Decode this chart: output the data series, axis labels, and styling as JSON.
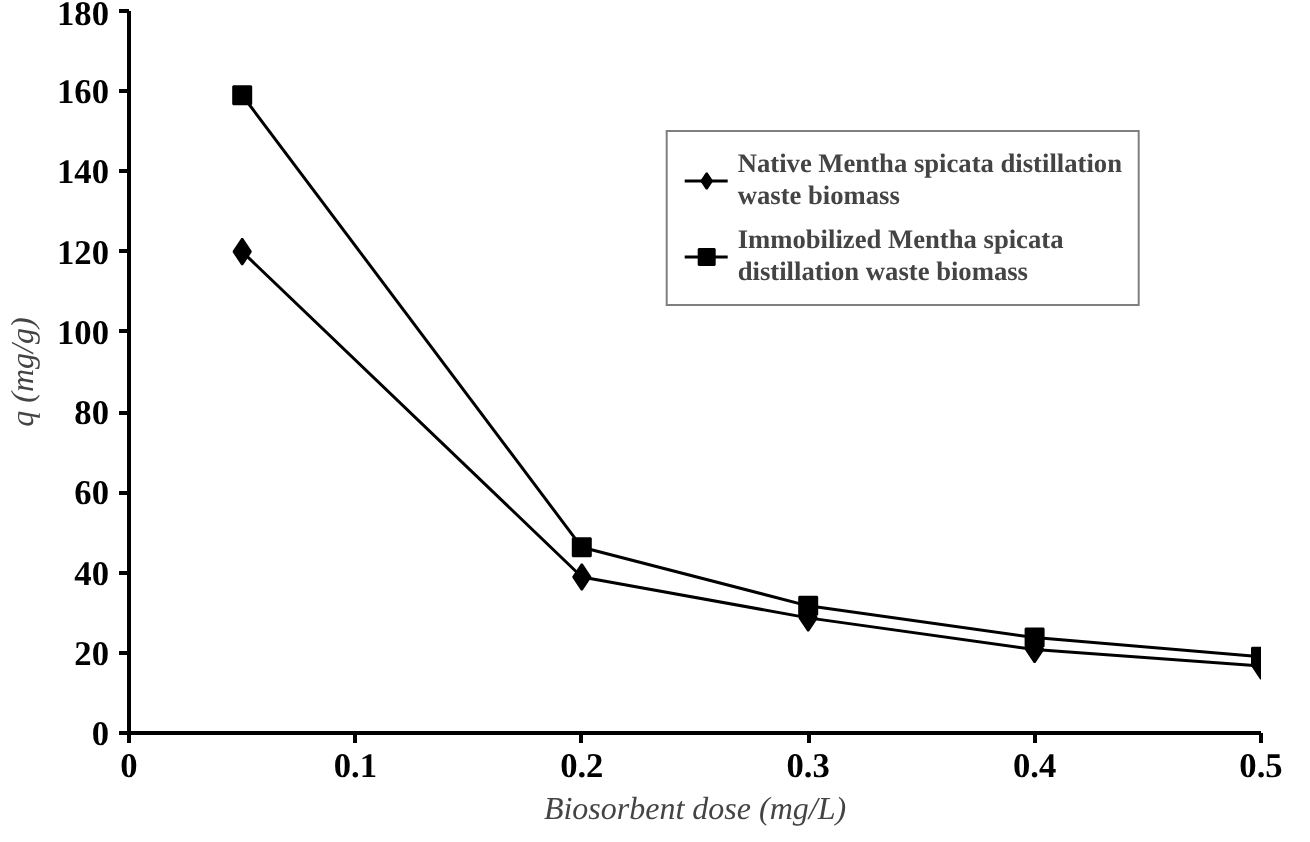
{
  "chart_data": {
    "type": "line",
    "xlabel": "Biosorbent dose (mg/L)",
    "ylabel": "q (mg/g)",
    "x": [
      0.05,
      0.2,
      0.3,
      0.4,
      0.5
    ],
    "series": [
      {
        "name": "Native Mentha spicata distillation waste biomass",
        "color": "#000000",
        "marker": "diamond",
        "values": [
          120,
          38.9,
          28.7,
          20.8,
          16.7
        ]
      },
      {
        "name": "Immobilized Mentha spicata distillation waste biomass",
        "color": "#000000",
        "marker": "square",
        "values": [
          159,
          46.3,
          31.7,
          23.8,
          19
        ]
      }
    ],
    "xlim": [
      0,
      0.5
    ],
    "ylim": [
      0,
      180
    ],
    "xticks": [
      0,
      0.1,
      0.2,
      0.3,
      0.4,
      0.5
    ],
    "yticks": [
      0,
      20,
      40,
      60,
      80,
      100,
      120,
      140,
      160,
      180
    ],
    "grid": false,
    "legend": "top right",
    "line_style": "solid"
  }
}
